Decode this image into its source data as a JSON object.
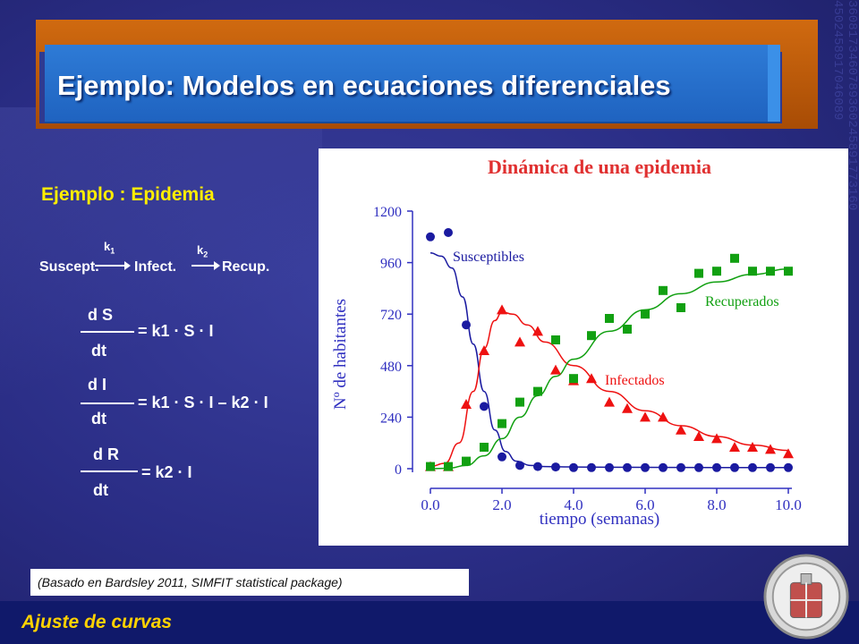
{
  "slide": {
    "title": "Ejemplo: Modelos en ecuaciones diferenciales",
    "subtitle": "Ejemplo : Epidemia",
    "footer": "Ajuste de curvas",
    "source": "(Basado en Bardsley 2011, SIMFIT statistical package)"
  },
  "reaction": {
    "s": "Suscept.",
    "i": "Infect.",
    "r": "Recup.",
    "k1": "k",
    "k1_sub": "1",
    "k2": "k",
    "k2_sub": "2"
  },
  "equations": {
    "eq1_num": "d S",
    "eq1_den": "dt",
    "eq1_rhs": "= k1 · S · I",
    "eq2_num": "d I",
    "eq2_den": "dt",
    "eq2_rhs": "= k1 · S · I – k2 · I",
    "eq3_num": "d R",
    "eq3_den": "dt",
    "eq3_rhs": "= k2 · I"
  },
  "colors": {
    "susceptibles": "#1a1aa0",
    "infectados": "#ee1111",
    "recuperados": "#11a011",
    "title_red": "#e03030",
    "axis_blue": "#3030c0"
  },
  "chart_data": {
    "type": "scatter",
    "title": "Dinámica de una epidemia",
    "xlabel": "tiempo (semanas)",
    "ylabel": "Nº de habitantes",
    "xlim": [
      0,
      10
    ],
    "ylim": [
      0,
      1200
    ],
    "xticks": [
      "0.0",
      "2.0",
      "4.0",
      "6.0",
      "8.0",
      "10.0"
    ],
    "yticks": [
      "0",
      "240",
      "480",
      "720",
      "960",
      "1200"
    ],
    "series": [
      {
        "name": "Susceptibles",
        "marker": "circle",
        "points": [
          [
            0.0,
            1080
          ],
          [
            0.5,
            1100
          ],
          [
            1.0,
            670
          ],
          [
            1.5,
            290
          ],
          [
            2.0,
            55
          ],
          [
            2.5,
            15
          ],
          [
            3.0,
            10
          ],
          [
            3.5,
            8
          ],
          [
            4.0,
            5
          ],
          [
            4.5,
            5
          ],
          [
            5.0,
            5
          ],
          [
            5.5,
            5
          ],
          [
            6.0,
            5
          ],
          [
            6.5,
            5
          ],
          [
            7.0,
            5
          ],
          [
            7.5,
            5
          ],
          [
            8.0,
            5
          ],
          [
            8.5,
            5
          ],
          [
            9.0,
            5
          ],
          [
            9.5,
            5
          ],
          [
            10.0,
            5
          ]
        ],
        "curve": [
          [
            0.0,
            1005
          ],
          [
            0.3,
            990
          ],
          [
            0.6,
            935
          ],
          [
            0.9,
            800
          ],
          [
            1.2,
            580
          ],
          [
            1.5,
            360
          ],
          [
            1.8,
            180
          ],
          [
            2.1,
            80
          ],
          [
            2.4,
            35
          ],
          [
            2.8,
            15
          ],
          [
            3.2,
            10
          ],
          [
            4.0,
            8
          ],
          [
            6.0,
            6
          ],
          [
            8.0,
            5
          ],
          [
            10.0,
            5
          ]
        ]
      },
      {
        "name": "Infectados",
        "marker": "triangle",
        "points": [
          [
            0.0,
            10
          ],
          [
            0.5,
            10
          ],
          [
            1.0,
            300
          ],
          [
            1.5,
            550
          ],
          [
            2.0,
            740
          ],
          [
            2.5,
            590
          ],
          [
            3.0,
            640
          ],
          [
            3.5,
            460
          ],
          [
            4.0,
            410
          ],
          [
            4.5,
            420
          ],
          [
            5.0,
            310
          ],
          [
            5.5,
            280
          ],
          [
            6.0,
            240
          ],
          [
            6.5,
            240
          ],
          [
            7.0,
            180
          ],
          [
            7.5,
            150
          ],
          [
            8.0,
            140
          ],
          [
            8.5,
            100
          ],
          [
            9.0,
            100
          ],
          [
            9.5,
            90
          ],
          [
            10.0,
            70
          ]
        ],
        "curve": [
          [
            0.0,
            10
          ],
          [
            0.4,
            25
          ],
          [
            0.8,
            120
          ],
          [
            1.2,
            360
          ],
          [
            1.5,
            560
          ],
          [
            1.8,
            690
          ],
          [
            2.0,
            730
          ],
          [
            2.3,
            720
          ],
          [
            2.7,
            670
          ],
          [
            3.2,
            590
          ],
          [
            4.0,
            480
          ],
          [
            5.0,
            360
          ],
          [
            6.0,
            270
          ],
          [
            7.0,
            200
          ],
          [
            8.0,
            150
          ],
          [
            9.0,
            110
          ],
          [
            10.0,
            85
          ]
        ]
      },
      {
        "name": "Recuperados",
        "marker": "square",
        "points": [
          [
            0.0,
            10
          ],
          [
            0.5,
            10
          ],
          [
            1.0,
            35
          ],
          [
            1.5,
            100
          ],
          [
            2.0,
            210
          ],
          [
            2.5,
            310
          ],
          [
            3.0,
            360
          ],
          [
            3.5,
            600
          ],
          [
            4.0,
            420
          ],
          [
            4.5,
            620
          ],
          [
            5.0,
            700
          ],
          [
            5.5,
            650
          ],
          [
            6.0,
            720
          ],
          [
            6.5,
            830
          ],
          [
            7.0,
            750
          ],
          [
            7.5,
            910
          ],
          [
            8.0,
            920
          ],
          [
            8.5,
            980
          ],
          [
            9.0,
            920
          ],
          [
            9.5,
            920
          ],
          [
            10.0,
            920
          ]
        ],
        "curve": [
          [
            0.0,
            0
          ],
          [
            0.5,
            2
          ],
          [
            1.0,
            15
          ],
          [
            1.5,
            60
          ],
          [
            2.0,
            140
          ],
          [
            2.5,
            240
          ],
          [
            3.0,
            340
          ],
          [
            3.5,
            430
          ],
          [
            4.0,
            510
          ],
          [
            5.0,
            640
          ],
          [
            6.0,
            740
          ],
          [
            7.0,
            815
          ],
          [
            8.0,
            870
          ],
          [
            9.0,
            905
          ],
          [
            10.0,
            930
          ]
        ]
      }
    ]
  }
}
